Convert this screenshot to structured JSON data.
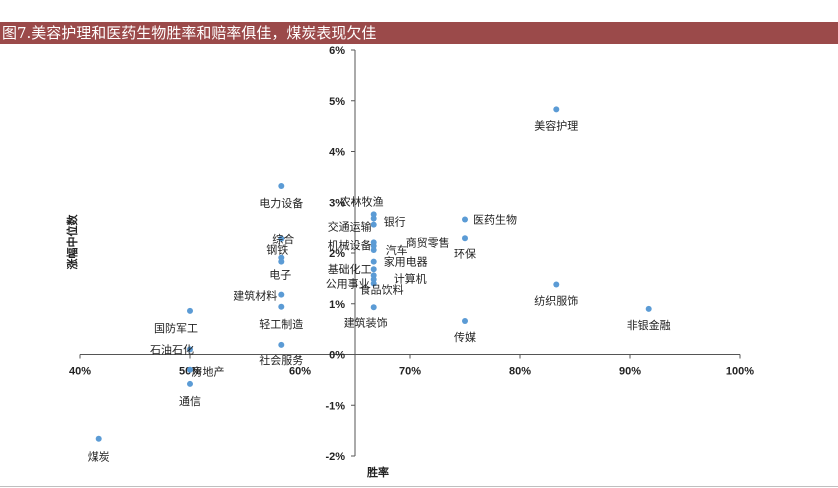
{
  "title": "图7.美容护理和医药生物胜率和赔率俱佳，煤炭表现欠佳",
  "colors": {
    "title_bar": "#9b4a4a",
    "point": "#5b9bd5",
    "axis": "#555555"
  },
  "chart_data": {
    "type": "scatter",
    "title": "",
    "xlabel": "胜率",
    "ylabel": "涨幅中位数",
    "xlim": [
      0.4,
      1.0
    ],
    "ylim": [
      -0.02,
      0.06
    ],
    "x_ticks": [
      "40%",
      "50%",
      "60%",
      "70%",
      "80%",
      "90%",
      "100%"
    ],
    "y_ticks": [
      "-2%",
      "-1%",
      "0%",
      "1%",
      "2%",
      "3%",
      "4%",
      "5%",
      "6%"
    ],
    "grid": false,
    "legend": "none",
    "points": [
      {
        "label": "美容护理",
        "x": 0.833,
        "y": 0.0483
      },
      {
        "label": "医药生物",
        "x": 0.75,
        "y": 0.0266
      },
      {
        "label": "环保",
        "x": 0.75,
        "y": 0.0229
      },
      {
        "label": "纺织服饰",
        "x": 0.833,
        "y": 0.0138
      },
      {
        "label": "非银金融",
        "x": 0.917,
        "y": 0.009
      },
      {
        "label": "传媒",
        "x": 0.75,
        "y": 0.0066
      },
      {
        "label": "电力设备",
        "x": 0.583,
        "y": 0.0332
      },
      {
        "label": "综合",
        "x": 0.583,
        "y": 0.0228
      },
      {
        "label": "钢铁",
        "x": 0.583,
        "y": 0.0191
      },
      {
        "label": "电子",
        "x": 0.583,
        "y": 0.0183
      },
      {
        "label": "建筑材料",
        "x": 0.583,
        "y": 0.0118
      },
      {
        "label": "轻工制造",
        "x": 0.583,
        "y": 0.0094
      },
      {
        "label": "社会服务",
        "x": 0.583,
        "y": 0.0019
      },
      {
        "label": "农林牧渔",
        "x": 0.667,
        "y": 0.0276
      },
      {
        "label": "银行",
        "x": 0.667,
        "y": 0.0268
      },
      {
        "label": "交通运输",
        "x": 0.667,
        "y": 0.0256
      },
      {
        "label": "商贸零售",
        "x": 0.667,
        "y": 0.0221
      },
      {
        "label": "机械设备",
        "x": 0.667,
        "y": 0.0214
      },
      {
        "label": "汽车",
        "x": 0.667,
        "y": 0.0206
      },
      {
        "label": "家用电器",
        "x": 0.667,
        "y": 0.0183
      },
      {
        "label": "基础化工",
        "x": 0.667,
        "y": 0.0168
      },
      {
        "label": "计算机",
        "x": 0.667,
        "y": 0.0156
      },
      {
        "label": "公用事业",
        "x": 0.667,
        "y": 0.0148
      },
      {
        "label": "食品饮料",
        "x": 0.667,
        "y": 0.014
      },
      {
        "label": "建筑装饰",
        "x": 0.667,
        "y": 0.0093
      },
      {
        "label": "国防军工",
        "x": 0.5,
        "y": 0.0086
      },
      {
        "label": "石油石化",
        "x": 0.5,
        "y": 0.001
      },
      {
        "label": "房地产",
        "x": 0.5,
        "y": -0.003
      },
      {
        "label": "通信",
        "x": 0.5,
        "y": -0.0058
      },
      {
        "label": "煤炭",
        "x": 0.417,
        "y": -0.0166
      }
    ]
  }
}
